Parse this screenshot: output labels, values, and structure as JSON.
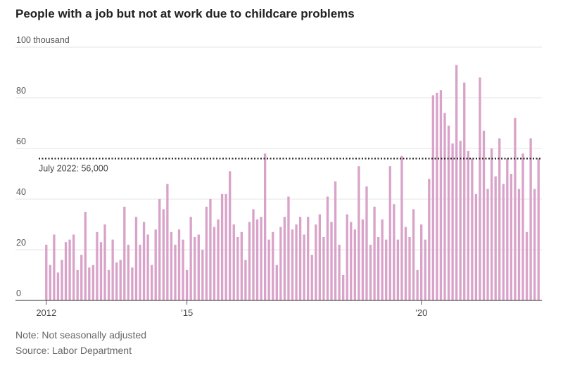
{
  "title": "People with a job but not at work due to childcare problems",
  "note": "Note: Not seasonally adjusted",
  "source": "Source: Labor Department",
  "colors": {
    "bar": "#d9a3c9",
    "grid": "#e6e6e6",
    "axis": "#555555",
    "reference": "#222222"
  },
  "chart_data": {
    "type": "bar",
    "title": "People with a job but not at work due to childcare problems",
    "unit_label": "100 thousand",
    "y_ticks": [
      {
        "value": 0,
        "label": "0"
      },
      {
        "value": 20,
        "label": "20"
      },
      {
        "value": 40,
        "label": "40"
      },
      {
        "value": 60,
        "label": "60"
      },
      {
        "value": 80,
        "label": "80"
      },
      {
        "value": 100,
        "label": "100 thousand"
      }
    ],
    "x_ticks": [
      {
        "index": 0,
        "label": "2012"
      },
      {
        "index": 36,
        "label": "’15"
      },
      {
        "index": 96,
        "label": "’20"
      }
    ],
    "ylim": [
      0,
      100
    ],
    "grid": true,
    "frequency": "monthly",
    "start": "2012-01",
    "end": "2022-07",
    "reference_line": {
      "value": 56,
      "label": "July 2022: 56,000"
    },
    "values": [
      22,
      14,
      26,
      11,
      16,
      23,
      24,
      26,
      12,
      18,
      35,
      13,
      14,
      27,
      23,
      30,
      12,
      24,
      15,
      16,
      37,
      22,
      13,
      33,
      22,
      31,
      26,
      14,
      28,
      40,
      36,
      46,
      27,
      22,
      28,
      24,
      12,
      33,
      25,
      26,
      20,
      37,
      40,
      29,
      32,
      42,
      42,
      51,
      30,
      25,
      27,
      16,
      31,
      36,
      32,
      33,
      58,
      24,
      27,
      14,
      29,
      33,
      41,
      28,
      30,
      33,
      26,
      33,
      18,
      30,
      34,
      25,
      41,
      31,
      47,
      22,
      10,
      34,
      31,
      28,
      53,
      32,
      45,
      22,
      37,
      25,
      32,
      24,
      53,
      38,
      24,
      57,
      29,
      25,
      36,
      12,
      30,
      24,
      48,
      81,
      82,
      83,
      74,
      69,
      62,
      93,
      63,
      86,
      59,
      56,
      42,
      88,
      67,
      44,
      60,
      49,
      64,
      46,
      56,
      50,
      72,
      44,
      58,
      27,
      64,
      44,
      56
    ]
  }
}
